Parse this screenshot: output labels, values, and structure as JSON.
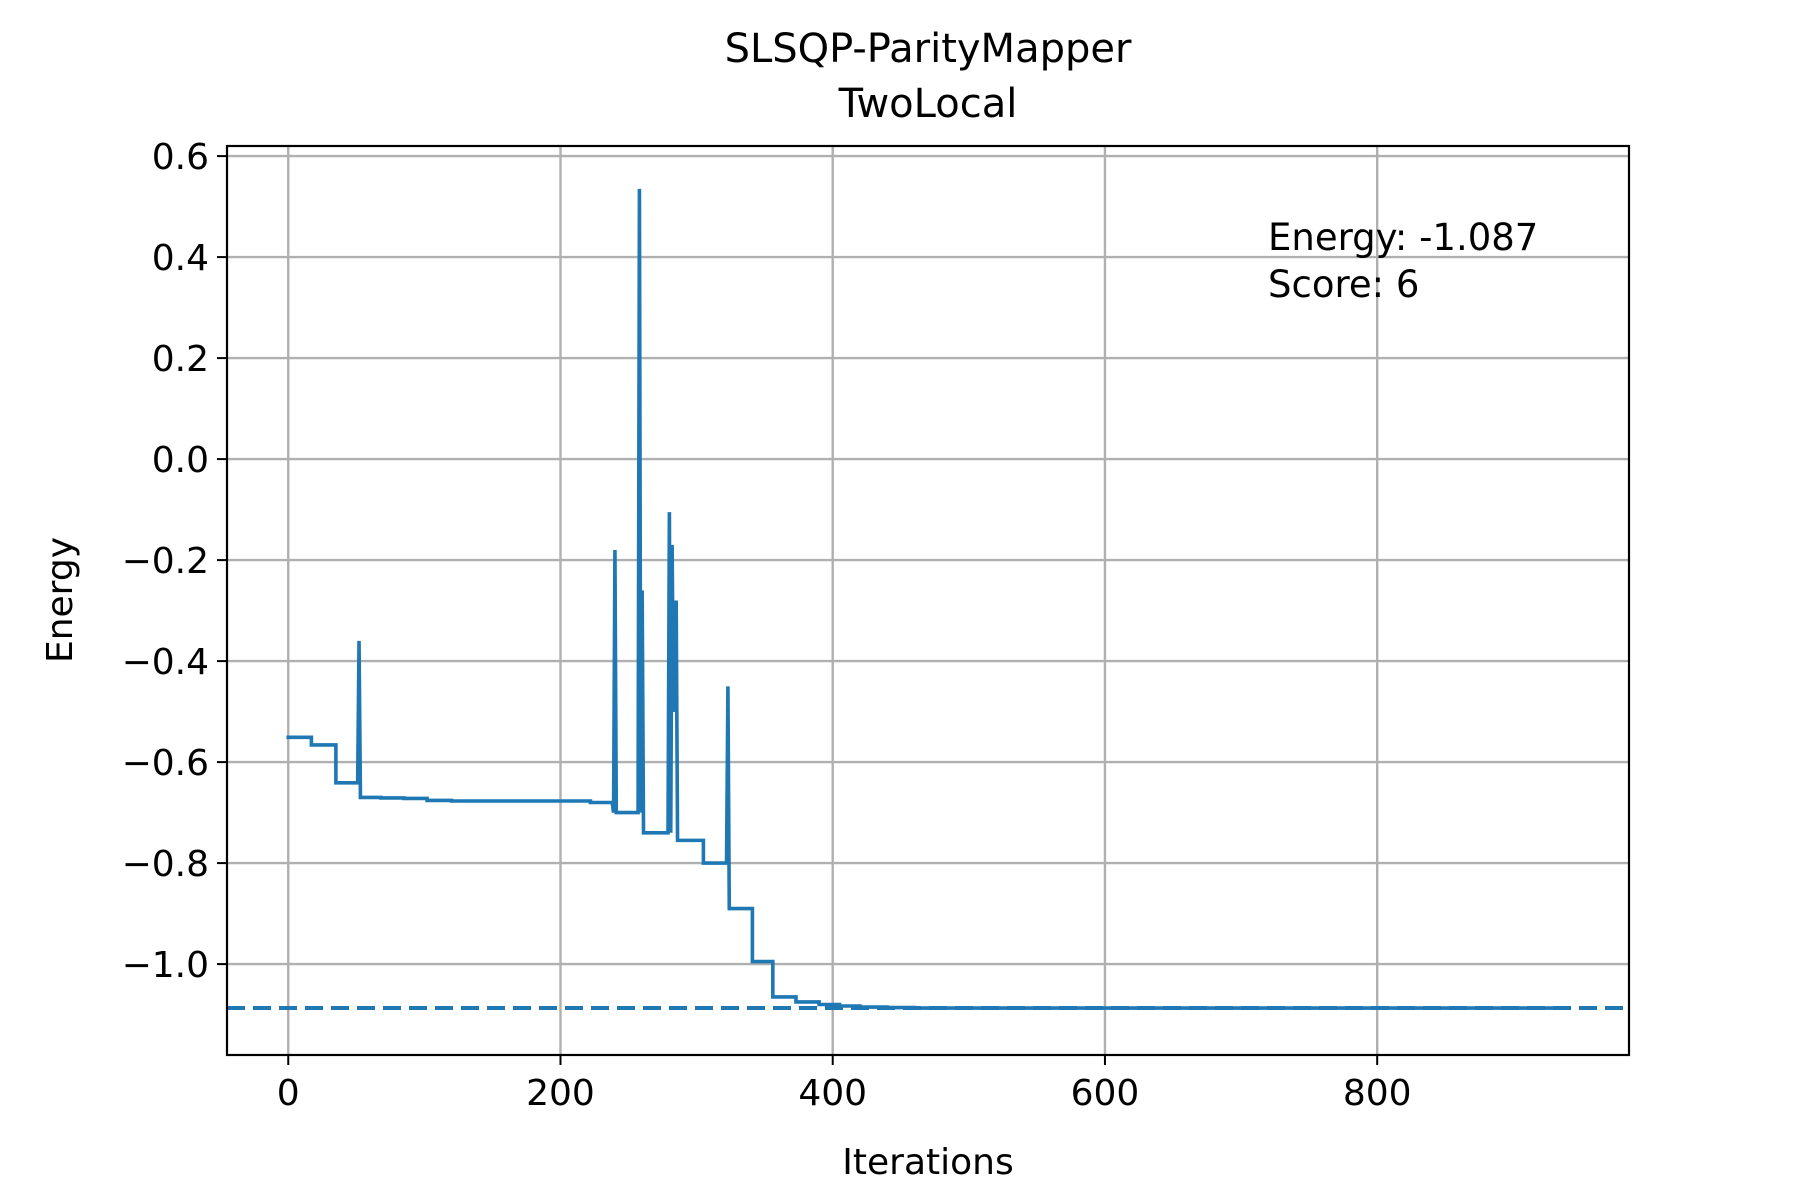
{
  "chart_data": {
    "type": "line",
    "title": "SLSQP-ParityMapper",
    "subtitle": "TwoLocal",
    "xlabel": "Iterations",
    "ylabel": "Energy",
    "xlim": [
      -45,
      985
    ],
    "ylim": [
      -1.18,
      0.62
    ],
    "xticks": [
      0,
      200,
      400,
      600,
      800
    ],
    "xtick_labels": [
      "0",
      "200",
      "400",
      "600",
      "800"
    ],
    "yticks": [
      0.6,
      0.4,
      0.2,
      0.0,
      -0.2,
      -0.4,
      -0.6,
      -0.8,
      -1.0
    ],
    "ytick_labels": [
      "0.6",
      "0.4",
      "0.2",
      "0.0",
      "−0.2",
      "−0.4",
      "−0.6",
      "−0.8",
      "−1.0"
    ],
    "grid": true,
    "colors": {
      "series": "#1f77b4",
      "grid": "#b0b0b0",
      "axes": "#000000"
    },
    "annotation": {
      "energy_text": "Energy: -1.087",
      "score_text": "Score: 6"
    },
    "reference_line": {
      "y": -1.087,
      "style": "dashed"
    },
    "series": [
      {
        "x": [
          0,
          17,
          17,
          35,
          35,
          51,
          52,
          53,
          53,
          68,
          68,
          85,
          85,
          102,
          102,
          120,
          120,
          140,
          140,
          160,
          160,
          180,
          180,
          200,
          200,
          222,
          222,
          238,
          239,
          240,
          241,
          255,
          257,
          258,
          259,
          260,
          261,
          262,
          263,
          264,
          265,
          277,
          278,
          279,
          280,
          281,
          282,
          283,
          284,
          285,
          286,
          287,
          288,
          289,
          290,
          291,
          305,
          305,
          322,
          323,
          324,
          325,
          326,
          327,
          341,
          341,
          356,
          356,
          373,
          373,
          390,
          390,
          405,
          405,
          420,
          420,
          440,
          440,
          460,
          460,
          500,
          550,
          600,
          650,
          700,
          750,
          800,
          850,
          900,
          940
        ],
        "y": [
          -0.551,
          -0.551,
          -0.566,
          -0.566,
          -0.641,
          -0.641,
          -0.36,
          -0.66,
          -0.67,
          -0.67,
          -0.671,
          -0.671,
          -0.672,
          -0.672,
          -0.676,
          -0.676,
          -0.677,
          -0.677,
          -0.677,
          -0.677,
          -0.677,
          -0.677,
          -0.677,
          -0.677,
          -0.677,
          -0.677,
          -0.68,
          -0.68,
          -0.7,
          -0.18,
          -0.7,
          -0.7,
          -0.7,
          0.535,
          -0.7,
          -0.26,
          -0.74,
          -0.74,
          -0.74,
          -0.74,
          -0.74,
          -0.74,
          -0.74,
          -0.74,
          -0.105,
          -0.74,
          -0.17,
          -0.49,
          -0.5,
          -0.28,
          -0.755,
          -0.755,
          -0.755,
          -0.755,
          -0.755,
          -0.755,
          -0.755,
          -0.8,
          -0.8,
          -0.45,
          -0.89,
          -0.89,
          -0.89,
          -0.89,
          -0.89,
          -0.995,
          -0.995,
          -1.065,
          -1.065,
          -1.075,
          -1.075,
          -1.08,
          -1.08,
          -1.083,
          -1.083,
          -1.085,
          -1.085,
          -1.086,
          -1.086,
          -1.087,
          -1.087,
          -1.087,
          -1.087,
          -1.087,
          -1.087,
          -1.087,
          -1.087,
          -1.087,
          -1.087,
          -1.087
        ]
      }
    ]
  }
}
